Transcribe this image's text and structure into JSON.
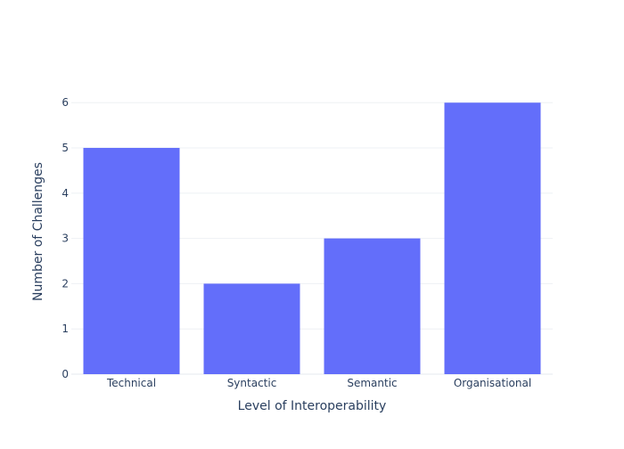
{
  "chart_data": {
    "type": "bar",
    "title": "",
    "xlabel": "Level of Interoperability",
    "ylabel": "Number of Challenges",
    "categories": [
      "Technical",
      "Syntactic",
      "Semantic",
      "Organisational"
    ],
    "values": [
      5,
      2,
      3,
      6
    ],
    "ylim": [
      0,
      6.3
    ],
    "yticks": [
      0,
      1,
      2,
      3,
      4,
      5,
      6
    ],
    "grid": true,
    "legend": "none",
    "bar_color": "#636efa"
  }
}
